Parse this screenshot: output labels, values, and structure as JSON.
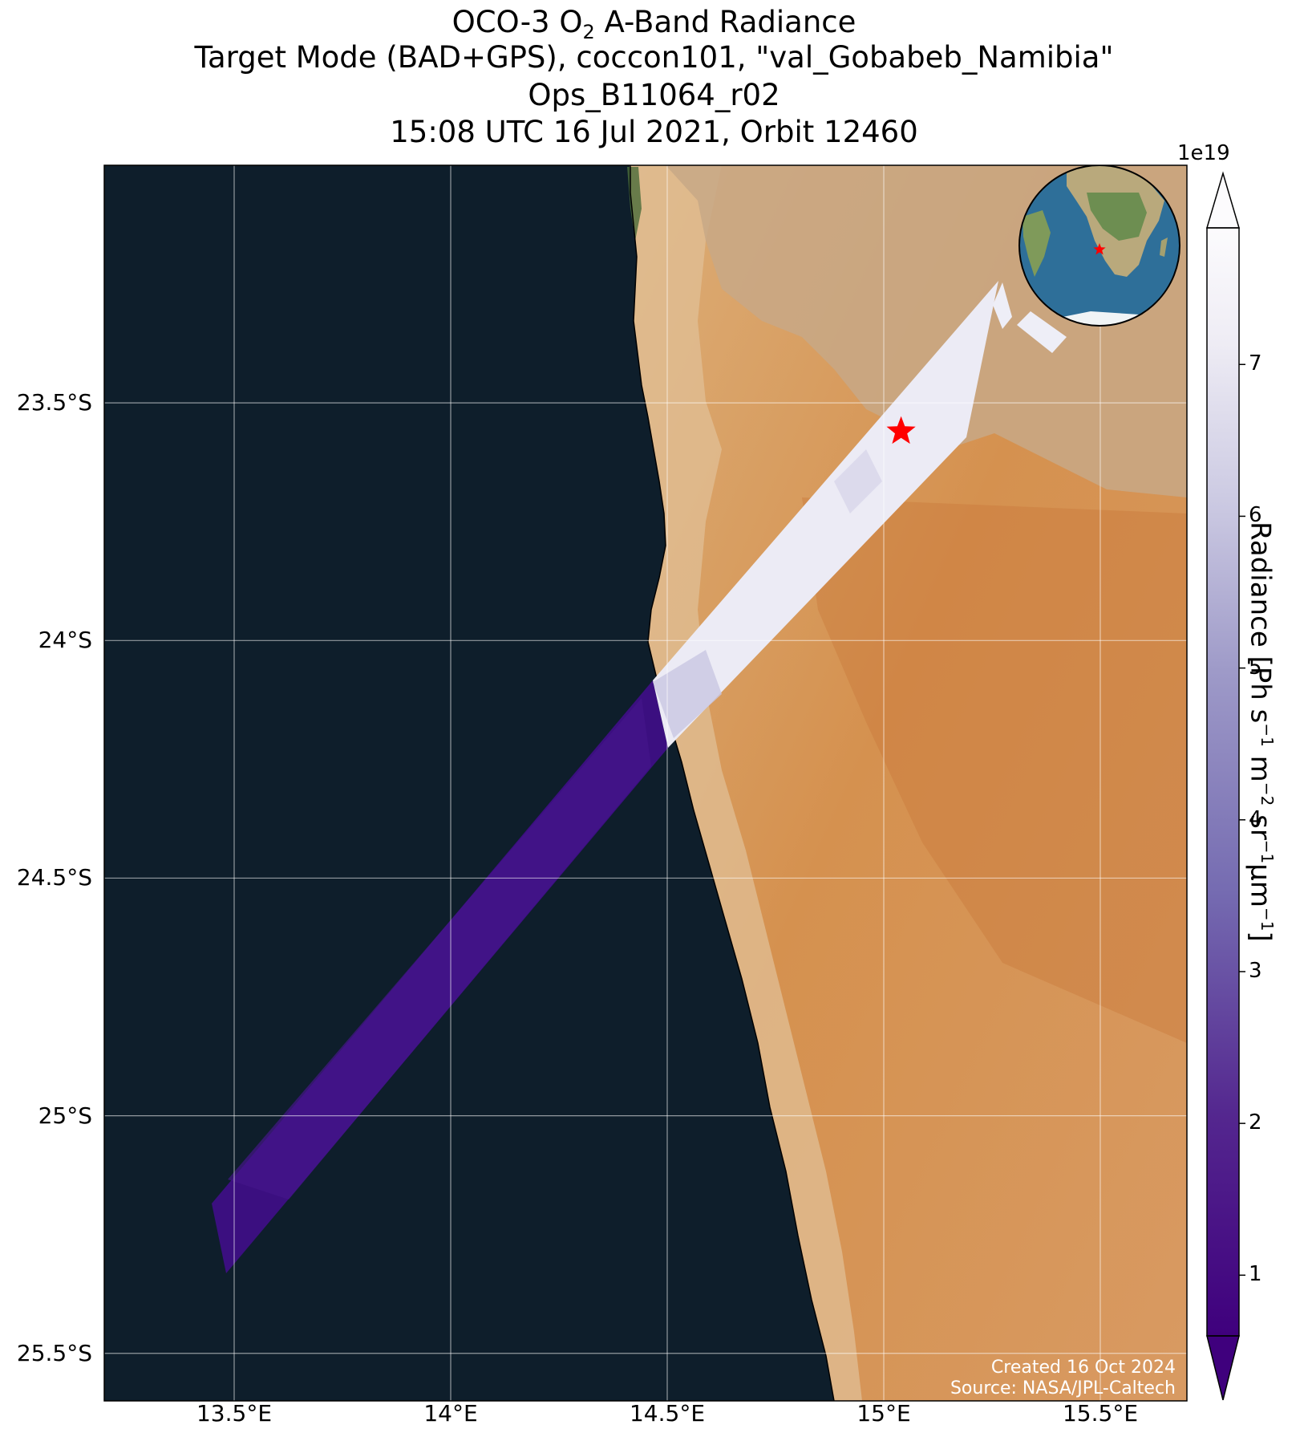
{
  "title": {
    "line1_pre": "OCO-3 O",
    "line1_sub": "2",
    "line1_post": " A-Band Radiance",
    "line2": "Target Mode (BAD+GPS), coccon101, \"val_Gobabeb_Namibia\"",
    "line3": "Ops_B11064_r02",
    "line4": "15:08 UTC 16 Jul 2021, Orbit 12460"
  },
  "map": {
    "lon_range": [
      13.2,
      15.7
    ],
    "lat_range": [
      -25.6,
      -23.0
    ],
    "lat_ticks": [
      {
        "value": -23.5,
        "label": "23.5°S"
      },
      {
        "value": -24.0,
        "label": "24°S"
      },
      {
        "value": -24.5,
        "label": "24.5°S"
      },
      {
        "value": -25.0,
        "label": "25°S"
      },
      {
        "value": -25.5,
        "label": "25.5°S"
      }
    ],
    "lon_ticks": [
      {
        "value": 13.5,
        "label": "13.5°E"
      },
      {
        "value": 14.0,
        "label": "14°E"
      },
      {
        "value": 14.5,
        "label": "14.5°E"
      },
      {
        "value": 15.0,
        "label": "15°E"
      },
      {
        "value": 15.5,
        "label": "15.5°E"
      }
    ],
    "grid": true,
    "ocean_color": "#0e1e2b",
    "desert_color": "#d08a4f",
    "target_marker": {
      "lon": 15.04,
      "lat": -23.56,
      "symbol": "star",
      "color": "#ff0000"
    },
    "swath_low_color": "#3b0f80",
    "swath_high_color": "#ecebf5",
    "inset_globe": {
      "center_lon": 15.0,
      "center_lat": -23.5
    }
  },
  "colorbar": {
    "label_main": "Radiance [Ph s",
    "exponent": "1e19",
    "ticks": [
      1,
      2,
      3,
      4,
      5,
      6,
      7
    ],
    "range": [
      0.6,
      7.9
    ],
    "cmap": "Purples_r",
    "extend": "both"
  },
  "footer": {
    "line1": "Created 16 Oct 2024",
    "line2": "Source: NASA/JPL-Caltech"
  }
}
